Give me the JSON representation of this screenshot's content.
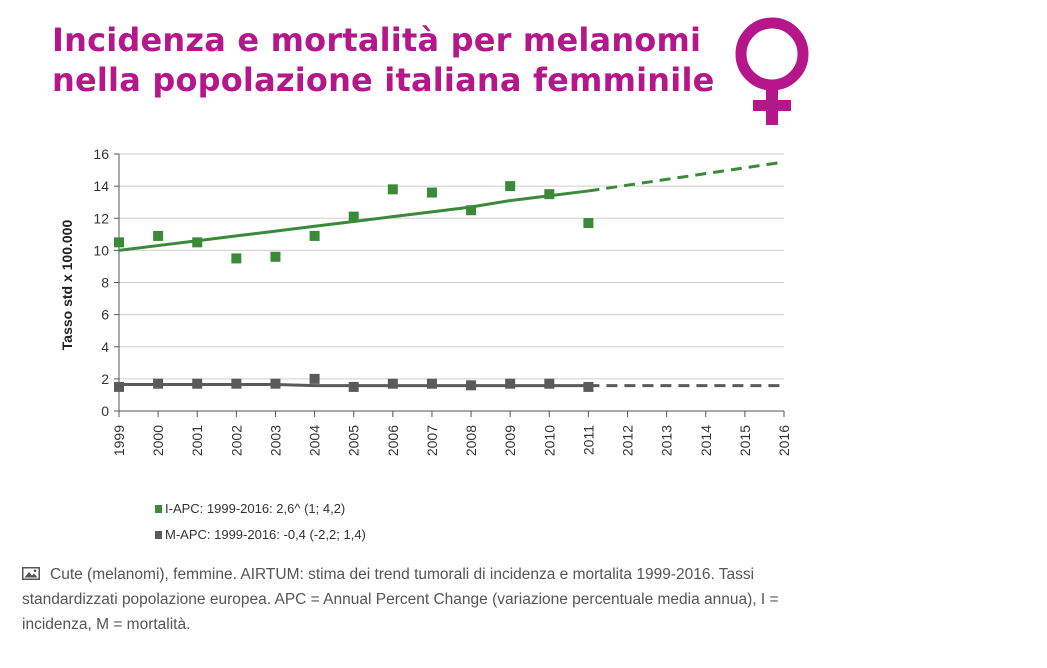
{
  "header": {
    "title_line1": "Incidenza e mortalità per melanomi",
    "title_line2": "nella popolazione italiana femminile",
    "symbol_icon": "venus-icon",
    "accent_color": "#b5178a"
  },
  "chart_data": {
    "type": "scatter",
    "ylabel": "Tasso std x 100.000",
    "xlabel": "",
    "categories": [
      "1999",
      "2000",
      "2001",
      "2002",
      "2003",
      "2004",
      "2005",
      "2006",
      "2007",
      "2008",
      "2009",
      "2010",
      "2011",
      "2012",
      "2013",
      "2014",
      "2015",
      "2016"
    ],
    "ylim": [
      0,
      16
    ],
    "yticks": [
      0,
      2,
      4,
      6,
      8,
      10,
      12,
      14,
      16
    ],
    "grid": true,
    "series": [
      {
        "name": "I-APC: 1999-2016: 2,6^ (1; 4,2)",
        "kind": "incidence",
        "color": "#3a8a3a",
        "observed_years": [
          "1999",
          "2000",
          "2001",
          "2002",
          "2003",
          "2004",
          "2005",
          "2006",
          "2007",
          "2008",
          "2009",
          "2010",
          "2011"
        ],
        "observed_values": [
          10.5,
          10.9,
          10.5,
          9.5,
          9.6,
          10.9,
          12.1,
          13.8,
          13.6,
          12.5,
          14.0,
          13.5,
          11.7
        ],
        "trend_years": [
          "1999",
          "2000",
          "2001",
          "2002",
          "2003",
          "2004",
          "2005",
          "2006",
          "2007",
          "2008",
          "2009",
          "2010",
          "2011"
        ],
        "trend_values": [
          10.0,
          10.3,
          10.6,
          10.9,
          11.2,
          11.5,
          11.8,
          12.1,
          12.4,
          12.7,
          13.1,
          13.4,
          13.7
        ],
        "projection_years": [
          "2011",
          "2016"
        ],
        "projection_values": [
          13.7,
          15.5
        ]
      },
      {
        "name": "M-APC: 1999-2016: -0,4 (-2,2; 1,4)",
        "kind": "mortality",
        "color": "#5a5a5a",
        "observed_years": [
          "1999",
          "2000",
          "2001",
          "2002",
          "2003",
          "2004",
          "2005",
          "2006",
          "2007",
          "2008",
          "2009",
          "2010",
          "2011"
        ],
        "observed_values": [
          1.5,
          1.7,
          1.7,
          1.7,
          1.7,
          2.0,
          1.5,
          1.7,
          1.7,
          1.6,
          1.7,
          1.7,
          1.5
        ],
        "trend_years": [
          "1999",
          "2000",
          "2001",
          "2002",
          "2003",
          "2004",
          "2005",
          "2006",
          "2007",
          "2008",
          "2009",
          "2010",
          "2011"
        ],
        "trend_values": [
          1.65,
          1.65,
          1.65,
          1.65,
          1.65,
          1.58,
          1.58,
          1.58,
          1.58,
          1.58,
          1.58,
          1.58,
          1.58
        ],
        "projection_years": [
          "2011",
          "2016"
        ],
        "projection_values": [
          1.58,
          1.58
        ]
      }
    ]
  },
  "legend": {
    "incidence_label": "I-APC: 1999-2016: 2,6^ (1; 4,2)",
    "mortality_label": "M-APC: 1999-2016: -0,4 (-2,2; 1,4)"
  },
  "caption": {
    "icon": "image-icon",
    "text": "Cute (melanomi), femmine. AIRTUM: stima dei trend tumorali di incidenza e mortalita 1999-2016. Tassi standardizzati popolazione europea. APC = Annual Percent Change (variazione percentuale media annua), I = incidenza, M = mortalità."
  }
}
